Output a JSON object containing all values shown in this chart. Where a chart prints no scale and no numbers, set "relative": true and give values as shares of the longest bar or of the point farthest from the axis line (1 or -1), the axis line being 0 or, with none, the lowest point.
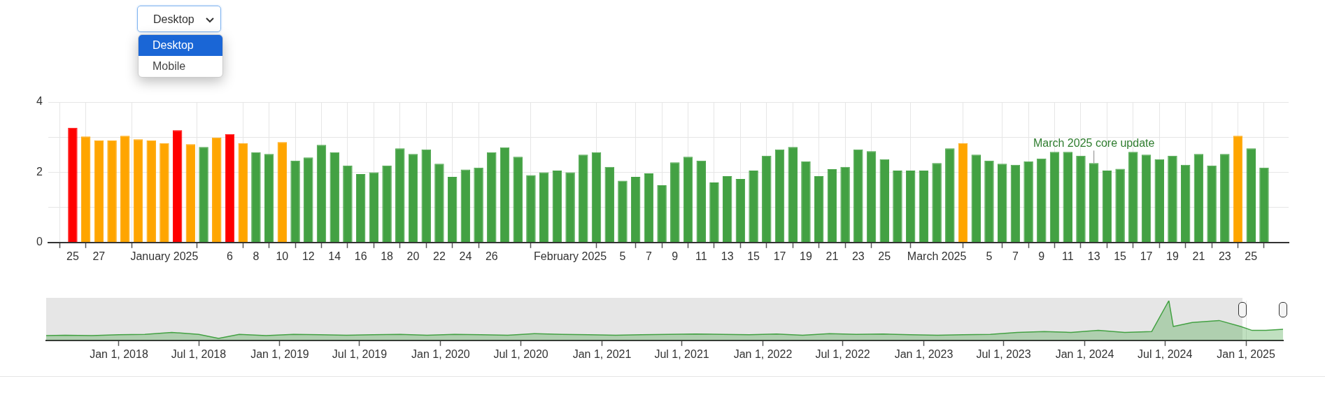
{
  "chart_data": [
    {
      "type": "bar",
      "x": [
        "2024-12-25",
        "2024-12-26",
        "2024-12-27",
        "2024-12-28",
        "2024-12-29",
        "2024-12-30",
        "2024-12-31",
        "2025-01-01",
        "2025-01-02",
        "2025-01-03",
        "2025-01-04",
        "2025-01-05",
        "2025-01-06",
        "2025-01-07",
        "2025-01-08",
        "2025-01-09",
        "2025-01-10",
        "2025-01-11",
        "2025-01-12",
        "2025-01-13",
        "2025-01-14",
        "2025-01-15",
        "2025-01-16",
        "2025-01-17",
        "2025-01-18",
        "2025-01-19",
        "2025-01-20",
        "2025-01-21",
        "2025-01-22",
        "2025-01-23",
        "2025-01-24",
        "2025-01-25",
        "2025-01-26",
        "2025-01-27",
        "2025-01-28",
        "2025-01-29",
        "2025-01-30",
        "2025-01-31",
        "2025-02-01",
        "2025-02-02",
        "2025-02-03",
        "2025-02-04",
        "2025-02-05",
        "2025-02-06",
        "2025-02-07",
        "2025-02-08",
        "2025-02-09",
        "2025-02-10",
        "2025-02-11",
        "2025-02-12",
        "2025-02-13",
        "2025-02-14",
        "2025-02-15",
        "2025-02-16",
        "2025-02-17",
        "2025-02-18",
        "2025-02-19",
        "2025-02-20",
        "2025-02-21",
        "2025-02-22",
        "2025-02-23",
        "2025-02-24",
        "2025-02-25",
        "2025-02-26",
        "2025-02-27",
        "2025-02-28",
        "2025-03-01",
        "2025-03-02",
        "2025-03-03",
        "2025-03-04",
        "2025-03-05",
        "2025-03-06",
        "2025-03-07",
        "2025-03-08",
        "2025-03-09",
        "2025-03-10",
        "2025-03-11",
        "2025-03-12",
        "2025-03-13",
        "2025-03-14",
        "2025-03-15",
        "2025-03-16",
        "2025-03-17",
        "2025-03-18",
        "2025-03-19",
        "2025-03-20",
        "2025-03-21",
        "2025-03-22",
        "2025-03-23",
        "2025-03-24",
        "2025-03-25",
        "2025-03-26"
      ],
      "values": [
        3.27,
        3.02,
        2.91,
        2.91,
        3.04,
        2.94,
        2.91,
        2.83,
        3.2,
        2.8,
        2.72,
        2.99,
        3.09,
        2.83,
        2.57,
        2.52,
        2.86,
        2.33,
        2.42,
        2.78,
        2.57,
        2.19,
        1.95,
        2.0,
        2.19,
        2.68,
        2.52,
        2.65,
        2.24,
        1.87,
        2.08,
        2.13,
        2.57,
        2.71,
        2.44,
        1.92,
        2.0,
        2.05,
        2.0,
        2.5,
        2.57,
        2.15,
        1.76,
        1.87,
        1.97,
        1.63,
        2.28,
        2.44,
        2.33,
        1.71,
        1.89,
        1.81,
        2.05,
        2.47,
        2.65,
        2.72,
        2.31,
        1.89,
        2.09,
        2.15,
        2.65,
        2.6,
        2.37,
        2.05,
        2.05,
        2.05,
        2.26,
        2.68,
        2.83,
        2.5,
        2.33,
        2.24,
        2.21,
        2.31,
        2.39,
        2.58,
        2.58,
        2.47,
        2.26,
        2.05,
        2.1,
        2.58,
        2.5,
        2.37,
        2.47,
        2.21,
        2.52,
        2.19,
        2.52,
        3.04,
        2.68,
        2.13
      ],
      "colors": [
        "#ff0000",
        "#ffa500",
        "#ffa500",
        "#ffa500",
        "#ffa500",
        "#ffa500",
        "#ffa500",
        "#ffa500",
        "#ff0000",
        "#ffa500",
        "#43a143",
        "#ffa500",
        "#ff0000",
        "#ffa500",
        "#43a143",
        "#43a143",
        "#ffa500",
        "#43a143",
        "#43a143",
        "#43a143",
        "#43a143",
        "#43a143",
        "#43a143",
        "#43a143",
        "#43a143",
        "#43a143",
        "#43a143",
        "#43a143",
        "#43a143",
        "#43a143",
        "#43a143",
        "#43a143",
        "#43a143",
        "#43a143",
        "#43a143",
        "#43a143",
        "#43a143",
        "#43a143",
        "#43a143",
        "#43a143",
        "#43a143",
        "#43a143",
        "#43a143",
        "#43a143",
        "#43a143",
        "#43a143",
        "#43a143",
        "#43a143",
        "#43a143",
        "#43a143",
        "#43a143",
        "#43a143",
        "#43a143",
        "#43a143",
        "#43a143",
        "#43a143",
        "#43a143",
        "#43a143",
        "#43a143",
        "#43a143",
        "#43a143",
        "#43a143",
        "#43a143",
        "#43a143",
        "#43a143",
        "#43a143",
        "#43a143",
        "#43a143",
        "#ffa500",
        "#43a143",
        "#43a143",
        "#43a143",
        "#43a143",
        "#43a143",
        "#43a143",
        "#43a143",
        "#43a143",
        "#43a143",
        "#43a143",
        "#43a143",
        "#43a143",
        "#43a143",
        "#43a143",
        "#43a143",
        "#43a143",
        "#43a143",
        "#43a143",
        "#43a143",
        "#43a143",
        "#ffa500",
        "#43a143",
        "#43a143"
      ],
      "xlim": [
        "2024-12-24T09:00",
        "2025-03-26T15:00"
      ],
      "xticks": [
        {
          "value": "2024-12-25",
          "label": "25"
        },
        {
          "value": "2024-12-27",
          "label": "27"
        },
        {
          "value": "2025-01-01",
          "label": "January 2025"
        },
        {
          "value": "2025-01-06",
          "label": "6"
        },
        {
          "value": "2025-01-08",
          "label": "8"
        },
        {
          "value": "2025-01-10",
          "label": "10"
        },
        {
          "value": "2025-01-12",
          "label": "12"
        },
        {
          "value": "2025-01-14",
          "label": "14"
        },
        {
          "value": "2025-01-16",
          "label": "16"
        },
        {
          "value": "2025-01-18",
          "label": "18"
        },
        {
          "value": "2025-01-20",
          "label": "20"
        },
        {
          "value": "2025-01-22",
          "label": "22"
        },
        {
          "value": "2025-01-24",
          "label": "24"
        },
        {
          "value": "2025-01-26",
          "label": "26"
        },
        {
          "value": "2025-02-01",
          "label": "February 2025"
        },
        {
          "value": "2025-02-05",
          "label": "5"
        },
        {
          "value": "2025-02-07",
          "label": "7"
        },
        {
          "value": "2025-02-09",
          "label": "9"
        },
        {
          "value": "2025-02-11",
          "label": "11"
        },
        {
          "value": "2025-02-13",
          "label": "13"
        },
        {
          "value": "2025-02-15",
          "label": "15"
        },
        {
          "value": "2025-02-17",
          "label": "17"
        },
        {
          "value": "2025-02-19",
          "label": "19"
        },
        {
          "value": "2025-02-21",
          "label": "21"
        },
        {
          "value": "2025-02-23",
          "label": "23"
        },
        {
          "value": "2025-02-25",
          "label": "25"
        },
        {
          "value": "2025-03-01",
          "label": "March 2025"
        },
        {
          "value": "2025-03-05",
          "label": "5"
        },
        {
          "value": "2025-03-07",
          "label": "7"
        },
        {
          "value": "2025-03-09",
          "label": "9"
        },
        {
          "value": "2025-03-11",
          "label": "11"
        },
        {
          "value": "2025-03-13",
          "label": "13"
        },
        {
          "value": "2025-03-15",
          "label": "15"
        },
        {
          "value": "2025-03-17",
          "label": "17"
        },
        {
          "value": "2025-03-19",
          "label": "19"
        },
        {
          "value": "2025-03-21",
          "label": "21"
        },
        {
          "value": "2025-03-23",
          "label": "23"
        },
        {
          "value": "2025-03-25",
          "label": "25"
        }
      ],
      "ylim": [
        0,
        4
      ],
      "yticks": [
        0,
        {
          "value": 1,
          "label": null
        },
        2,
        {
          "value": 3,
          "label": null
        },
        4
      ],
      "grid": true,
      "annotations": [
        {
          "text": "March 2025 core update",
          "x": "2025-03-13",
          "y": 2.26
        }
      ]
    },
    {
      "type": "area",
      "relative": true,
      "x": [
        "2017-07-20",
        "2017-09-01",
        "2017-11-01",
        "2018-01-01",
        "2018-03-01",
        "2018-05-01",
        "2018-07-01",
        "2018-08-15",
        "2018-10-01",
        "2018-12-01",
        "2019-02-01",
        "2019-04-01",
        "2019-06-01",
        "2019-08-01",
        "2019-10-01",
        "2019-12-01",
        "2020-02-01",
        "2020-04-01",
        "2020-06-01",
        "2020-08-01",
        "2020-10-01",
        "2020-12-01",
        "2021-02-01",
        "2021-04-01",
        "2021-06-01",
        "2021-08-01",
        "2021-10-01",
        "2021-12-01",
        "2022-02-01",
        "2022-04-01",
        "2022-06-01",
        "2022-08-01",
        "2022-10-01",
        "2022-12-01",
        "2023-02-01",
        "2023-04-01",
        "2023-06-01",
        "2023-08-01",
        "2023-10-01",
        "2023-12-01",
        "2024-02-01",
        "2024-04-01",
        "2024-06-01",
        "2024-07-10",
        "2024-07-20",
        "2024-09-01",
        "2024-11-01",
        "2024-12-20",
        "2025-01-15",
        "2025-02-15",
        "2025-03-26"
      ],
      "values": [
        0.12,
        0.13,
        0.12,
        0.14,
        0.15,
        0.2,
        0.15,
        0.05,
        0.15,
        0.12,
        0.15,
        0.14,
        0.13,
        0.14,
        0.15,
        0.13,
        0.15,
        0.14,
        0.13,
        0.17,
        0.15,
        0.14,
        0.13,
        0.14,
        0.15,
        0.16,
        0.15,
        0.14,
        0.16,
        0.13,
        0.17,
        0.15,
        0.16,
        0.14,
        0.13,
        0.14,
        0.15,
        0.2,
        0.22,
        0.2,
        0.25,
        0.2,
        0.22,
        1,
        0.35,
        0.45,
        0.5,
        0.35,
        0.25,
        0.25,
        0.28
      ],
      "color": "#43a143",
      "xlim": [
        "2017-07-20",
        "2025-03-26"
      ],
      "xticks": [
        {
          "value": "2018-01-01",
          "label": "Jan 1, 2018"
        },
        {
          "value": "2018-07-01",
          "label": "Jul 1, 2018"
        },
        {
          "value": "2019-01-01",
          "label": "Jan 1, 2019"
        },
        {
          "value": "2019-07-01",
          "label": "Jul 1, 2019"
        },
        {
          "value": "2020-01-01",
          "label": "Jan 1, 2020"
        },
        {
          "value": "2020-07-01",
          "label": "Jul 1, 2020"
        },
        {
          "value": "2021-01-01",
          "label": "Jan 1, 2021"
        },
        {
          "value": "2021-07-01",
          "label": "Jul 1, 2021"
        },
        {
          "value": "2022-01-01",
          "label": "Jan 1, 2022"
        },
        {
          "value": "2022-07-01",
          "label": "Jul 1, 2022"
        },
        {
          "value": "2023-01-01",
          "label": "Jan 1, 2023"
        },
        {
          "value": "2023-07-01",
          "label": "Jul 1, 2023"
        },
        {
          "value": "2024-01-01",
          "label": "Jan 1, 2024"
        },
        {
          "value": "2024-07-01",
          "label": "Jul 1, 2024"
        },
        {
          "value": "2025-01-01",
          "label": "Jan 1, 2025"
        }
      ],
      "grid": "x",
      "tick_labels": "x"
    },
    {
      "type": "other",
      "title": "Desktop",
      "annotations": [
        "Desktop",
        "Mobile"
      ]
    }
  ]
}
